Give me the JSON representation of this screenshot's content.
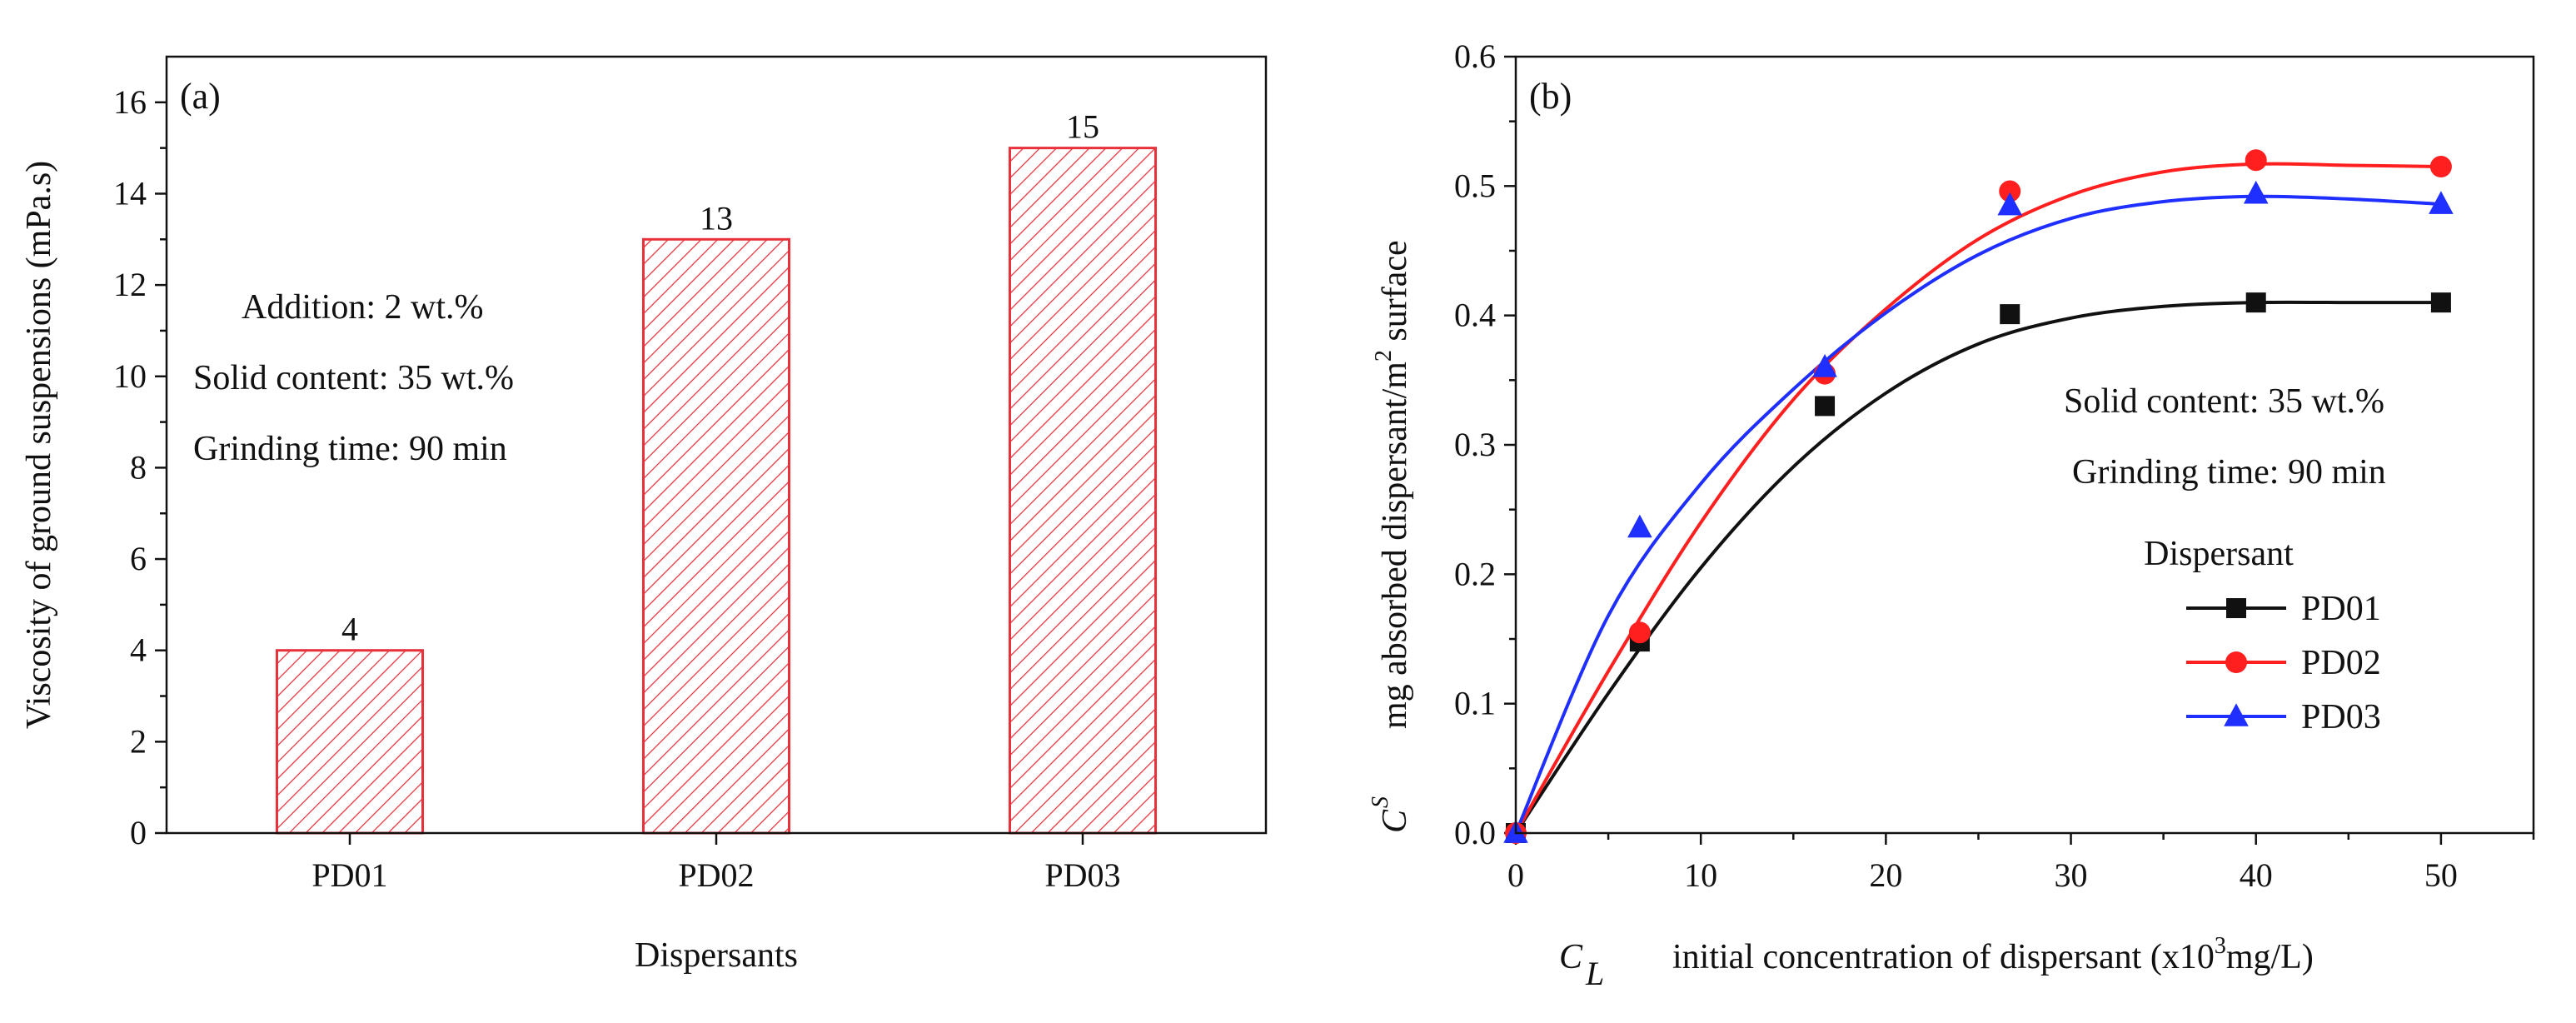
{
  "chart_data": [
    {
      "type": "bar",
      "panel_label": "(a)",
      "categories": [
        "PD01",
        "PD02",
        "PD03"
      ],
      "values": [
        4,
        13,
        15
      ],
      "value_labels": [
        "4",
        "13",
        "15"
      ],
      "xlabel": "Dispersants",
      "ylabel": "Viscosity of ground suspensions (mPa.s)",
      "ylim": [
        0,
        17
      ],
      "yticks": [
        0,
        2,
        4,
        6,
        8,
        10,
        12,
        14,
        16
      ],
      "ytick_labels": [
        "0",
        "2",
        "4",
        "6",
        "8",
        "10",
        "12",
        "14",
        "16"
      ],
      "bar_style": {
        "edge_color": "#e8313a",
        "hatch_color": "#e8313a",
        "hatch": "diagonal"
      },
      "annotations": [
        "Addition: 2 wt.%",
        "Solid content: 35 wt.%",
        "Grinding time: 90 min"
      ]
    },
    {
      "type": "line",
      "panel_label": "(b)",
      "xlim": [
        0,
        55
      ],
      "ylim": [
        0,
        0.6
      ],
      "xticks": [
        0,
        10,
        20,
        30,
        40,
        50
      ],
      "xtick_labels": [
        "0",
        "10",
        "20",
        "30",
        "40",
        "50"
      ],
      "yticks": [
        0,
        0.1,
        0.2,
        0.3,
        0.4,
        0.5,
        0.6
      ],
      "ytick_labels": [
        "0.0",
        "0.1",
        "0.2",
        "0.3",
        "0.4",
        "0.5",
        "0.6"
      ],
      "xlabel": {
        "symbol": "C",
        "subscript": "L",
        "text_before_sup": "initial concentration of dispersant (x10",
        "sup": "3",
        "text_after_sup": "mg/L)"
      },
      "ylabel": {
        "symbol": "C",
        "superscript": "S",
        "text_before_sup": "mg absorbed dispersant/m",
        "sup": "2",
        "text_after_sup": " surface"
      },
      "annotations": [
        "Solid content: 35 wt.%",
        "Grinding time: 90 min"
      ],
      "legend": {
        "title": "Dispersant",
        "position": "right"
      },
      "series": [
        {
          "name": "PD01",
          "color": "#111111",
          "marker": "square",
          "points": [
            [
              0,
              0.0
            ],
            [
              6.7,
              0.148
            ],
            [
              16.7,
              0.33
            ],
            [
              26.7,
              0.401
            ],
            [
              40,
              0.41
            ],
            [
              50,
              0.41
            ]
          ],
          "fit": [
            [
              0,
              0.0
            ],
            [
              5,
              0.108
            ],
            [
              10,
              0.205
            ],
            [
              15,
              0.283
            ],
            [
              20,
              0.34
            ],
            [
              25,
              0.378
            ],
            [
              30,
              0.398
            ],
            [
              35,
              0.407
            ],
            [
              40,
              0.41
            ],
            [
              45,
              0.41
            ],
            [
              50,
              0.41
            ]
          ]
        },
        {
          "name": "PD02",
          "color": "#ff1f1f",
          "marker": "circle",
          "points": [
            [
              0,
              0.0
            ],
            [
              6.7,
              0.155
            ],
            [
              16.7,
              0.355
            ],
            [
              26.7,
              0.496
            ],
            [
              40,
              0.52
            ],
            [
              50,
              0.515
            ]
          ],
          "fit": [
            [
              0,
              0.0
            ],
            [
              5,
              0.125
            ],
            [
              10,
              0.24
            ],
            [
              15,
              0.335
            ],
            [
              20,
              0.405
            ],
            [
              25,
              0.459
            ],
            [
              30,
              0.493
            ],
            [
              35,
              0.511
            ],
            [
              40,
              0.517
            ],
            [
              45,
              0.516
            ],
            [
              50,
              0.515
            ]
          ]
        },
        {
          "name": "PD03",
          "color": "#1f2fff",
          "marker": "triangle",
          "points": [
            [
              0,
              0.0
            ],
            [
              6.7,
              0.236
            ],
            [
              16.7,
              0.36
            ],
            [
              26.7,
              0.485
            ],
            [
              40,
              0.494
            ],
            [
              50,
              0.486
            ]
          ],
          "fit": [
            [
              0,
              0.0
            ],
            [
              5,
              0.168
            ],
            [
              10,
              0.27
            ],
            [
              15,
              0.343
            ],
            [
              20,
              0.402
            ],
            [
              25,
              0.447
            ],
            [
              30,
              0.475
            ],
            [
              35,
              0.488
            ],
            [
              40,
              0.492
            ],
            [
              45,
              0.49
            ],
            [
              50,
              0.486
            ]
          ]
        }
      ]
    }
  ]
}
